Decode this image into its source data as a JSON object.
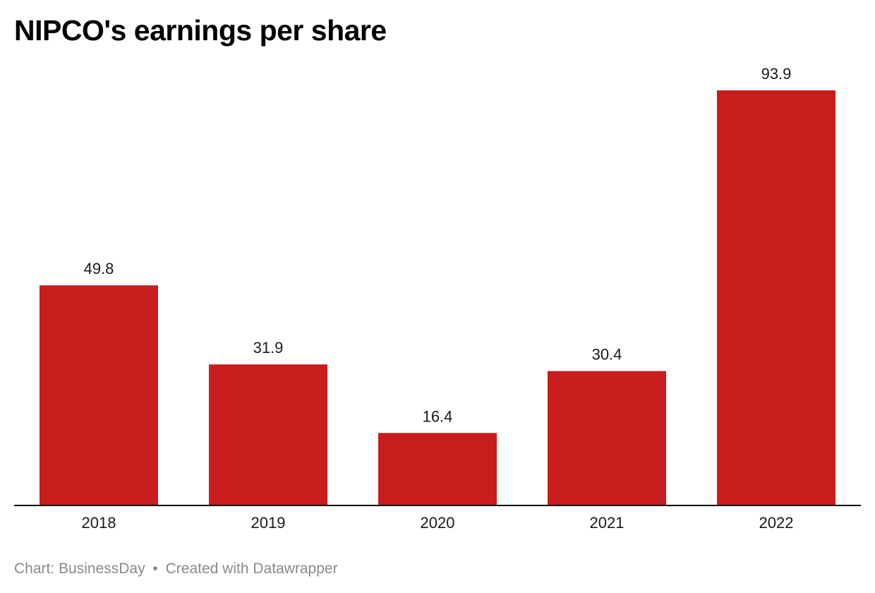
{
  "title": "NIPCO's earnings per share",
  "footer": {
    "source": "Chart: BusinessDay",
    "separator": "•",
    "credit": "Created with Datawrapper"
  },
  "colors": {
    "bar": "#c91d1d",
    "axis": "#000000",
    "label": "#1a1a1a",
    "footer": "#8a8a8a"
  },
  "chart_data": {
    "type": "bar",
    "title": "NIPCO's earnings per share",
    "categories": [
      "2018",
      "2019",
      "2020",
      "2021",
      "2022"
    ],
    "values": [
      49.8,
      31.9,
      16.4,
      30.4,
      93.9
    ],
    "value_labels": [
      "49.8",
      "31.9",
      "16.4",
      "30.4",
      "93.9"
    ],
    "xlabel": "",
    "ylabel": "",
    "ylim": [
      0,
      93.9
    ],
    "grid": false,
    "legend": "none"
  }
}
